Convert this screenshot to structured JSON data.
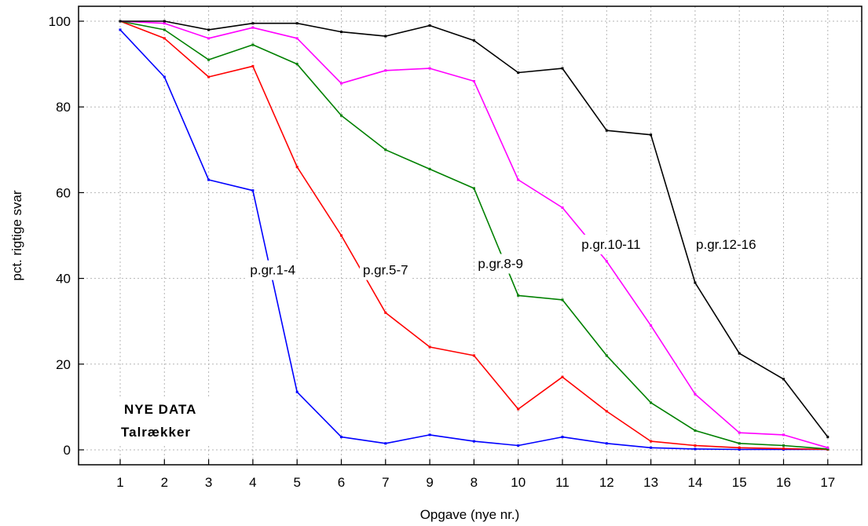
{
  "chart_data": {
    "type": "line",
    "categories": [
      "1",
      "2",
      "3",
      "4",
      "5",
      "6",
      "7",
      "9",
      "8",
      "10",
      "11",
      "12",
      "13",
      "14",
      "15",
      "16",
      "17"
    ],
    "xlabel": "Opgave (nye nr.)",
    "ylabel": "pct. rigtige svar",
    "ylim": [
      0,
      100
    ],
    "yticks": [
      0,
      20,
      40,
      60,
      80,
      100
    ],
    "grid": true,
    "annotations": [
      "NYE DATA",
      "Talrækker"
    ],
    "series": [
      {
        "name": "p.gr.1-4",
        "color": "#0000ff",
        "values": [
          98,
          87,
          63,
          60.5,
          13.5,
          3,
          1.5,
          3.5,
          2,
          1,
          3,
          1.5,
          0.5,
          0.2,
          0.1,
          0.1,
          0.1
        ]
      },
      {
        "name": "p.gr.5-7",
        "color": "#ff0000",
        "values": [
          100,
          96,
          87,
          89.5,
          66,
          50,
          32,
          24,
          22,
          9.5,
          17,
          9,
          2,
          1,
          0.5,
          0.3,
          0.1
        ]
      },
      {
        "name": "p.gr.8-9",
        "color": "#008000",
        "values": [
          100,
          98,
          91,
          94.5,
          90,
          78,
          70,
          65.5,
          61,
          36,
          35,
          22,
          11,
          4.5,
          1.5,
          1,
          0.2
        ]
      },
      {
        "name": "p.gr.10-11",
        "color": "#ff00ff",
        "values": [
          100,
          99.5,
          96,
          98.5,
          96,
          85.5,
          88.5,
          89,
          86,
          63,
          56.5,
          44,
          29,
          13,
          4,
          3.5,
          0.5
        ]
      },
      {
        "name": "p.gr.12-16",
        "color": "#000000",
        "values": [
          100,
          100,
          98,
          99.5,
          99.5,
          97.5,
          96.5,
          99,
          95.5,
          88,
          89,
          74.5,
          73.5,
          39,
          22.5,
          16.5,
          3
        ]
      }
    ]
  }
}
